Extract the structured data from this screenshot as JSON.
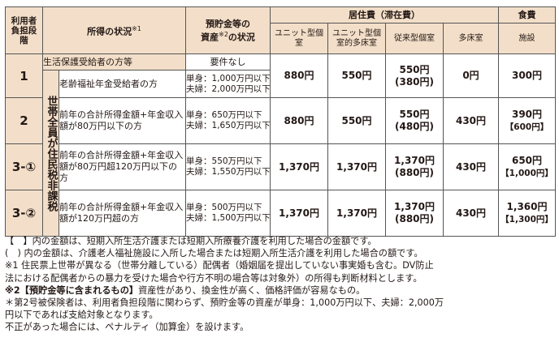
{
  "headers": {
    "level": "利用者負担段階",
    "income": "所得の状況",
    "income_mark": "※1",
    "assets_l1": "預貯金等の",
    "assets_l2a": "資産",
    "assets_mark": "※2",
    "assets_l2b": "の状況",
    "residence": "居住費（滞在費）",
    "food": "食費",
    "unit_private": "ユニット型個室",
    "unit_semi": "ユニット型個室的多床室",
    "conventional": "従来型個室",
    "multi": "多床室",
    "facility": "施設"
  },
  "group_label": "世帯全員が住民税非課税",
  "rows": [
    {
      "level": "1",
      "income_a": "生活保護受給者の方等",
      "income_b": "老齢福祉年金受給者の方",
      "asset_a": "要件なし",
      "asset_single": "単身：1,000万円以下",
      "asset_couple": "夫婦：2,000万円以下",
      "unit_private": "880円",
      "unit_semi": "550円",
      "conventional": "550円",
      "conventional_sub": "(380円)",
      "multi": "0円",
      "food": "300円",
      "food_sub": ""
    },
    {
      "level": "2",
      "income": "前年の合計所得金額+年金収入額が80万円以下の方",
      "asset_single": "単身：650万円以下",
      "asset_couple": "夫婦：1,650万円以下",
      "unit_private": "880円",
      "unit_semi": "550円",
      "conventional": "550円",
      "conventional_sub": "(480円)",
      "multi": "430円",
      "food": "390円",
      "food_sub": "【600円】"
    },
    {
      "level": "3-①",
      "income": "前年の合計所得金額+年金収入額が80万円超120万円以下の方",
      "asset_single": "単身：550万円以下",
      "asset_couple": "夫婦：1,550万円以下",
      "unit_private": "1,370円",
      "unit_semi": "1,370円",
      "conventional": "1,370円",
      "conventional_sub": "(880円)",
      "multi": "430円",
      "food": "650円",
      "food_sub": "【1,000円】"
    },
    {
      "level": "3-②",
      "income": "前年の合計所得金額+年金収入額が120万円超の方",
      "asset_single": "単身：500万円以下",
      "asset_couple": "夫婦：1,500万円以下",
      "unit_private": "1,370円",
      "unit_semi": "1,370円",
      "conventional": "1,370円",
      "conventional_sub": "(880円)",
      "multi": "430円",
      "food": "1,360円",
      "food_sub": "【1,300円】"
    }
  ],
  "notes": {
    "n1": "【　】内の金額は、短期入所生活介護または短期入所療養介護を利用した場合の金額です。",
    "n2": "(　) 内の金額は、介護老人福祉施設に入所した場合または短期入所生活介護を利用した場合の額です。",
    "n3a": "※1 住民票上世帯が異なる（世帯分離している）配偶者（婚姻届を提出していない事実婚も含む。DV防止",
    "n3b": "法における配偶者からの暴力を受けた場合や行方不明の場合等は対象外）の所得も判断材料とします。",
    "n4_label": "※2【預貯金等に含まれるもの】",
    "n4_text": "資産性があり、換金性が高く、価格評価が容易なもの。",
    "n5a": "＊第2号被保険者は、利用者負担段階に関わらず、預貯金等の資産が単身：1,000万円以下、夫婦：2,000万",
    "n5b": "円以下であれば支給対象となります。",
    "n6": "不正があった場合には、ペナルティ（加算金）を設けます。"
  }
}
